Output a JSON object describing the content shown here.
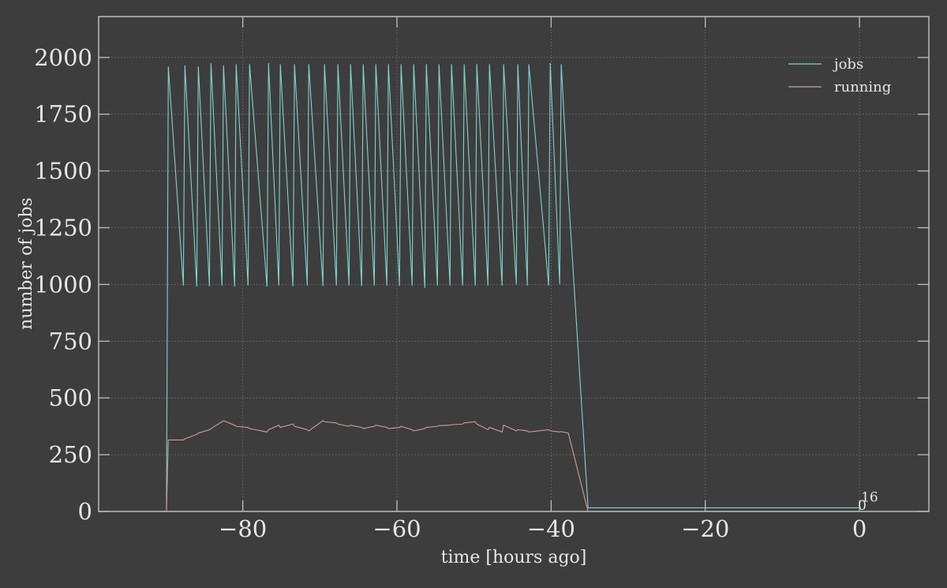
{
  "chart_data": {
    "type": "line",
    "x_label": "time [hours ago]",
    "y_label": "number of jobs",
    "x": [
      -89.9,
      -89.66,
      -87.71,
      -87.51,
      -85.97,
      -85.77,
      -84.33,
      -84.13,
      -82.7,
      -82.5,
      -81.06,
      -80.86,
      -79.32,
      -79.12,
      -76.86,
      -76.66,
      -75.33,
      -75.13,
      -73.49,
      -73.29,
      -71.64,
      -71.44,
      -69.6,
      -69.4,
      -67.86,
      -67.66,
      -66.22,
      -66.02,
      -64.58,
      -64.38,
      -62.94,
      -62.74,
      -61.31,
      -61.11,
      -59.67,
      -59.47,
      -58.03,
      -57.83,
      -56.39,
      -56.19,
      -54.75,
      -54.55,
      -53.12,
      -52.92,
      -51.48,
      -51.28,
      -49.84,
      -49.64,
      -48.2,
      -48.0,
      -46.36,
      -46.16,
      -44.52,
      -44.32,
      -43.09,
      -42.89,
      -40.32,
      -40.12,
      -38.89,
      -38.69,
      -37.77,
      -35.21,
      0
    ],
    "series": [
      {
        "name": "jobs",
        "color": "#7fd3cf",
        "values": [
          0,
          1960,
          995,
          1965,
          990,
          1960,
          992,
          1975,
          995,
          1965,
          990,
          1970,
          995,
          1970,
          990,
          1975,
          995,
          1970,
          992,
          1970,
          995,
          1970,
          993,
          1970,
          995,
          1970,
          995,
          1970,
          993,
          1970,
          995,
          1970,
          995,
          1970,
          994,
          1970,
          995,
          1970,
          985,
          1970,
          995,
          1970,
          995,
          1970,
          995,
          1970,
          995,
          1970,
          995,
          1970,
          995,
          1970,
          1000,
          1970,
          995,
          1970,
          995,
          1975,
          1000,
          1970,
          1400,
          16,
          16
        ]
      },
      {
        "name": "running",
        "color": "#d29b97",
        "values": [
          0,
          315,
          315,
          320,
          340,
          345,
          360,
          365,
          395,
          400,
          380,
          375,
          370,
          365,
          350,
          360,
          380,
          370,
          385,
          375,
          360,
          355,
          400,
          395,
          390,
          385,
          375,
          380,
          370,
          365,
          375,
          380,
          370,
          365,
          370,
          375,
          360,
          355,
          365,
          370,
          375,
          378,
          380,
          382,
          385,
          390,
          395,
          385,
          360,
          370,
          350,
          380,
          355,
          360,
          355,
          350,
          360,
          355,
          350,
          352,
          345,
          0,
          0
        ]
      }
    ],
    "end_labels": [
      "16",
      "0"
    ],
    "xlim": [
      -98.7,
      9.0
    ],
    "ylim": [
      0,
      2180
    ],
    "xticks": [
      {
        "value": -80,
        "label": "−80"
      },
      {
        "value": -60,
        "label": "−60"
      },
      {
        "value": -40,
        "label": "−40"
      },
      {
        "value": -20,
        "label": "−20"
      },
      0
    ],
    "yticks": [
      0,
      250,
      500,
      750,
      1000,
      1250,
      1500,
      1750,
      2000
    ],
    "grid": true,
    "legend": "upper right",
    "background": "#3d3d3d",
    "axis_color": "#bdbdbd"
  }
}
